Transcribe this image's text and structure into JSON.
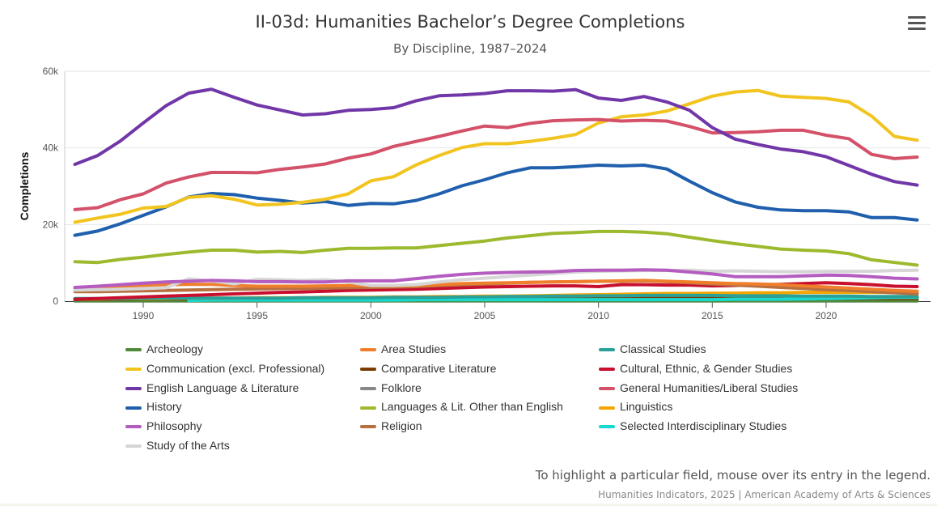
{
  "chart_data": {
    "type": "line",
    "title": "II-03d: Humanities Bachelor’s Degree Completions",
    "subtitle": "By Discipline, 1987–2024",
    "ylabel": "Completions",
    "xlabel": "",
    "ylim": [
      0,
      60000
    ],
    "xlim": [
      1987,
      2024
    ],
    "xticks": [
      1990,
      1995,
      2000,
      2005,
      2010,
      2015,
      2020
    ],
    "ytick_labels": [
      "0",
      "20k",
      "40k",
      "60k"
    ],
    "ytick_values": [
      0,
      20000,
      40000,
      60000
    ],
    "grid": true,
    "legend_placement": "bottom",
    "start_year": 1987,
    "series": [
      {
        "name": "Archeology",
        "color": "#4e8a3a",
        "values": [
          0.1,
          0.1,
          0.1,
          0.1,
          0.1,
          0.1,
          0.1,
          0.1,
          0.1,
          0.1,
          0.1,
          0.1,
          0.1,
          0.1,
          0.1,
          0.1,
          0.1,
          0.1,
          0.1,
          0.1,
          0.1,
          0.1,
          0.1,
          0.1,
          0.1,
          0.1,
          0.1,
          0.1,
          0.1,
          0.1,
          0.1,
          0.1,
          0.1,
          0.1,
          0.1,
          0.1,
          0.1,
          0.1
        ]
      },
      {
        "name": "Area Studies",
        "color": "#f07f2c",
        "values": [
          3.2,
          3.5,
          3.8,
          4,
          4.3,
          4.4,
          4.4,
          4.1,
          3.9,
          3.9,
          3.9,
          4,
          4.1,
          4,
          4,
          4.1,
          4.3,
          4.6,
          4.7,
          4.8,
          4.9,
          5,
          5.1,
          5.2,
          5.3,
          5.4,
          5.2,
          5,
          4.8,
          4.6,
          4.5,
          4.3,
          4,
          3.7,
          3.4,
          3.1,
          2.8,
          2.6
        ]
      },
      {
        "name": "Classical Studies",
        "color": "#2aa198",
        "values": [
          0.7,
          0.7,
          0.7,
          0.8,
          0.8,
          0.8,
          0.8,
          0.8,
          0.8,
          0.8,
          0.9,
          0.9,
          0.9,
          0.9,
          1,
          1,
          1,
          1.1,
          1.1,
          1.2,
          1.2,
          1.3,
          1.3,
          1.4,
          1.4,
          1.5,
          1.5,
          1.5,
          1.5,
          1.4,
          1.4,
          1.4,
          1.3,
          1.3,
          1.3,
          1.2,
          1.2,
          1.2
        ]
      },
      {
        "name": "Communication (excl. Professional)",
        "color": "#f2c41f",
        "values": [
          20.6,
          21.7,
          22.7,
          24.3,
          24.7,
          27.1,
          27.5,
          26.6,
          25.1,
          25.3,
          25.8,
          26.6,
          28,
          31.4,
          32.5,
          35.6,
          38,
          40.1,
          41.1,
          41.1,
          41.7,
          42.5,
          43.5,
          46.5,
          48.1,
          48.6,
          49.6,
          51.5,
          53.5,
          54.6,
          55,
          53.5,
          53.2,
          52.9,
          52,
          48.3,
          43,
          42
        ]
      },
      {
        "name": "Comparative Literature",
        "color": "#7a3d00",
        "values": [
          0.5,
          0.5,
          0.5,
          0.6,
          0.6,
          0.6,
          0.6,
          0.6,
          0.6,
          0.6,
          0.6,
          0.6,
          0.7,
          0.7,
          0.7,
          0.7,
          0.7,
          0.7,
          0.8,
          0.8,
          0.8,
          0.8,
          0.8,
          0.8,
          0.8,
          0.8,
          0.8,
          0.8,
          0.8,
          0.7,
          0.7,
          0.7,
          0.7,
          0.7,
          0.7,
          0.7,
          0.7,
          0.7
        ]
      },
      {
        "name": "Cultural, Ethnic, & Gender Studies",
        "color": "#c8102e",
        "values": [
          0.5,
          0.7,
          0.9,
          1.1,
          1.3,
          1.5,
          1.7,
          1.9,
          2.1,
          2.3,
          2.4,
          2.6,
          2.8,
          2.9,
          3,
          3.1,
          3.3,
          3.5,
          3.7,
          3.8,
          3.9,
          4,
          4,
          3.8,
          4.3,
          4.3,
          4.2,
          4.2,
          4,
          4.1,
          4.3,
          4.4,
          4.6,
          4.8,
          4.6,
          4.3,
          3.9,
          3.8
        ]
      },
      {
        "name": "English Language & Literature",
        "color": "#7137a8",
        "values": [
          35.7,
          38,
          41.8,
          46.5,
          51,
          54.3,
          55.3,
          53.2,
          51.2,
          49.9,
          48.6,
          48.9,
          49.8,
          50,
          50.5,
          52.3,
          53.6,
          53.8,
          54.2,
          54.9,
          54.9,
          54.8,
          55.2,
          53,
          52.4,
          53.4,
          52,
          49.8,
          45.3,
          42.3,
          40.9,
          39.7,
          39,
          37.7,
          35.4,
          33.1,
          31.2,
          30.3
        ]
      },
      {
        "name": "Folklore",
        "color": "#888888",
        "values": [
          0.05,
          0.05,
          0.05,
          0.05,
          0.05,
          0.05,
          0.05,
          0.05,
          0.05,
          0.05,
          0.05,
          0.05,
          0.05,
          0.05,
          0.05,
          0.05,
          0.05,
          0.05,
          0.05,
          0.05,
          0.05,
          0.05,
          0.05,
          0.05,
          0.05,
          0.05,
          0.05,
          0.05,
          0.05,
          0.05,
          0.05,
          0.05,
          0.05,
          0.05,
          0.05,
          0.05,
          0.05,
          0.05
        ]
      },
      {
        "name": "General Humanities/Liberal Studies",
        "color": "#d4516a",
        "values": [
          23.9,
          24.4,
          26.5,
          28,
          30.8,
          32.4,
          33.6,
          33.6,
          33.5,
          34.4,
          35,
          35.8,
          37.3,
          38.4,
          40.4,
          41.7,
          43,
          44.4,
          45.7,
          45.3,
          46.4,
          47.1,
          47.3,
          47.4,
          47,
          47.2,
          47,
          45.6,
          43.9,
          44,
          44.2,
          44.6,
          44.6,
          43.3,
          42.4,
          38.3,
          37.2,
          37.6
        ]
      },
      {
        "name": "History",
        "color": "#1f5fad",
        "values": [
          17.2,
          18.3,
          20.2,
          22.4,
          24.6,
          27.2,
          28.1,
          27.8,
          26.9,
          26.3,
          25.6,
          26,
          25,
          25.5,
          25.4,
          26.3,
          28,
          30.1,
          31.7,
          33.5,
          34.8,
          34.8,
          35.1,
          35.5,
          35.3,
          35.5,
          34.5,
          31.3,
          28.3,
          25.9,
          24.5,
          23.8,
          23.6,
          23.6,
          23.3,
          21.8,
          21.8,
          21.2
        ]
      },
      {
        "name": "Languages & Lit. Other than English",
        "color": "#9cba2e",
        "values": [
          10.3,
          10.1,
          10.9,
          11.5,
          12.2,
          12.8,
          13.3,
          13.3,
          12.8,
          13,
          12.7,
          13.3,
          13.8,
          13.8,
          13.9,
          13.9,
          14.5,
          15.1,
          15.7,
          16.5,
          17.1,
          17.7,
          17.9,
          18.2,
          18.2,
          18,
          17.6,
          16.7,
          15.8,
          15,
          14.3,
          13.6,
          13.3,
          13.1,
          12.4,
          10.8,
          10.1,
          9.4
        ]
      },
      {
        "name": "Linguistics",
        "color": "#f5a500",
        "values": [
          0.6,
          0.6,
          0.7,
          0.7,
          0.7,
          0.8,
          0.8,
          0.8,
          0.9,
          0.9,
          0.9,
          1,
          1,
          1,
          1.1,
          1.1,
          1.2,
          1.2,
          1.3,
          1.3,
          1.4,
          1.5,
          1.6,
          1.7,
          1.8,
          1.9,
          2,
          2,
          2.1,
          2.1,
          2.2,
          2.2,
          2.3,
          2.3,
          2.3,
          2.3,
          2.3,
          2.2
        ]
      },
      {
        "name": "Philosophy",
        "color": "#b45cc0",
        "values": [
          3.6,
          3.9,
          4.3,
          4.7,
          5,
          5.2,
          5.4,
          5.3,
          5.1,
          5.1,
          5,
          5,
          5.3,
          5.3,
          5.3,
          5.9,
          6.5,
          7,
          7.3,
          7.5,
          7.6,
          7.7,
          8,
          8.1,
          8.1,
          8.2,
          8.1,
          7.6,
          7.1,
          6.4,
          6.4,
          6.4,
          6.6,
          6.8,
          6.7,
          6.4,
          6,
          5.8
        ]
      },
      {
        "name": "Religion",
        "color": "#b87040",
        "values": [
          2.5,
          2.5,
          2.6,
          2.7,
          2.8,
          2.9,
          3,
          3.1,
          3.2,
          3.3,
          3.3,
          3.4,
          3.5,
          3.6,
          3.7,
          3.8,
          4.1,
          4.3,
          4.5,
          4.7,
          4.9,
          5,
          5.1,
          5.2,
          5.2,
          5.3,
          5.1,
          4.8,
          4.5,
          4.2,
          3.9,
          3.6,
          3.3,
          3,
          2.8,
          2.5,
          2.2,
          1.9
        ]
      },
      {
        "name": "Selected Interdisciplinary Studies",
        "color": "#19d8d0",
        "values": [
          null,
          null,
          null,
          null,
          null,
          0.2,
          0.3,
          0.3,
          0.3,
          0.3,
          0.3,
          0.3,
          0.3,
          0.3,
          0.3,
          0.4,
          0.4,
          0.4,
          0.4,
          0.4,
          0.4,
          0.4,
          0.4,
          0.4,
          0.4,
          0.4,
          0.4,
          0.4,
          0.4,
          0.5,
          0.5,
          0.5,
          0.6,
          0.7,
          0.8,
          0.9,
          1,
          1
        ]
      },
      {
        "name": "Study of the Arts",
        "color": "#d6d6d6",
        "values": [
          2.9,
          3,
          3.1,
          3.3,
          3.5,
          5.8,
          5.3,
          4.5,
          5.7,
          5.6,
          5.4,
          5.6,
          5,
          4.1,
          4.1,
          4.3,
          5,
          5.6,
          6,
          6.4,
          6.8,
          7.2,
          7.6,
          7.8,
          7.9,
          8,
          8,
          8.1,
          7.8,
          7.9,
          7.8,
          7.7,
          7.7,
          7.8,
          7.8,
          7.8,
          8,
          8.1
        ]
      }
    ],
    "value_unit": "thousands"
  },
  "hint": "To highlight a particular field, mouse over its entry in the legend.",
  "credit": "Humanities Indicators, 2025 | American Academy of Arts & Sciences",
  "menu_icon": "hamburger-icon"
}
